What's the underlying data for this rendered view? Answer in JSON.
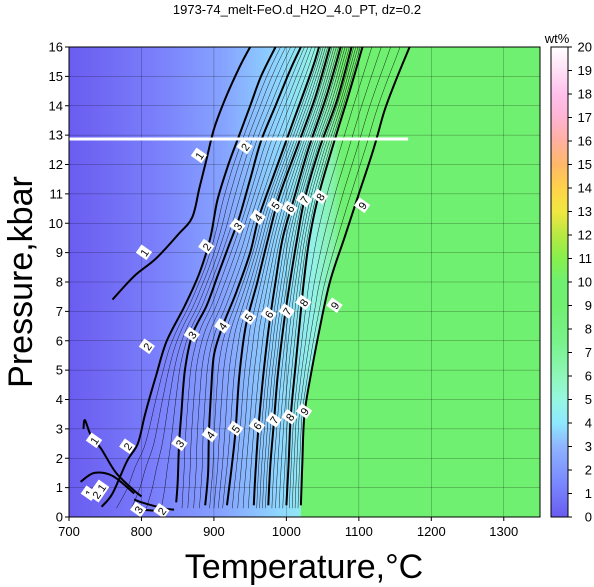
{
  "chart_data": {
    "type": "heatmap",
    "title": "1973-74_melt-FeO.d_H2O_4.0_PT, dz=0.2",
    "xlabel": "Temperature,°C",
    "ylabel": "Pressure,kbar",
    "xlim": [
      700,
      1350
    ],
    "ylim": [
      0,
      16
    ],
    "x_ticks": [
      "700",
      "800",
      "900",
      "1000",
      "1100",
      "1200",
      "1300"
    ],
    "y_ticks": [
      "0",
      "1",
      "2",
      "3",
      "4",
      "5",
      "6",
      "7",
      "8",
      "9",
      "10",
      "11",
      "12",
      "13",
      "14",
      "15",
      "16"
    ],
    "grid": true,
    "colorbar": {
      "label": "wt%",
      "range": [
        0,
        20
      ],
      "ticks": [
        "0",
        "1",
        "2",
        "3",
        "4",
        "5",
        "6",
        "7",
        "8",
        "9",
        "10",
        "11",
        "12",
        "13",
        "14",
        "15",
        "16",
        "17",
        "18",
        "19",
        "20"
      ],
      "stops": [
        {
          "v": 0,
          "color": "#6a5cf0"
        },
        {
          "v": 1.5,
          "color": "#7a8aff"
        },
        {
          "v": 3,
          "color": "#8fb4ff"
        },
        {
          "v": 4,
          "color": "#8ee8ff"
        },
        {
          "v": 5,
          "color": "#96f7e0"
        },
        {
          "v": 6,
          "color": "#8ef7b8"
        },
        {
          "v": 7.5,
          "color": "#78f28a"
        },
        {
          "v": 9,
          "color": "#70f070"
        },
        {
          "v": 10,
          "color": "#70f070"
        },
        {
          "v": 11,
          "color": "#86f04c"
        },
        {
          "v": 12,
          "color": "#b7e842"
        },
        {
          "v": 13,
          "color": "#f0e840"
        },
        {
          "v": 14,
          "color": "#ffd24a"
        },
        {
          "v": 15,
          "color": "#ffb868"
        },
        {
          "v": 16,
          "color": "#ffb0a0"
        },
        {
          "v": 17,
          "color": "#ffb4d2"
        },
        {
          "v": 18,
          "color": "#ffc0ec"
        },
        {
          "v": 19,
          "color": "#ffe0f6"
        },
        {
          "v": 20,
          "color": "#ffffff"
        }
      ]
    },
    "saturated_region": {
      "color": "#70f070",
      "value_wt_pct": 10
    },
    "contours": [
      {
        "level": 1,
        "points": [
          [
            716,
            1.2
          ],
          [
            735,
            1.5
          ],
          [
            760,
            1.4
          ],
          [
            790,
            0.8
          ]
        ]
      },
      {
        "level": 1,
        "points": [
          [
            720,
            3.0
          ],
          [
            722,
            3.3
          ],
          [
            730,
            2.8
          ],
          [
            745,
            2.3
          ],
          [
            765,
            1.5
          ],
          [
            790,
            0.9
          ],
          [
            800,
            0.7
          ]
        ]
      },
      {
        "level": 1,
        "points": [
          [
            760,
            7.4
          ],
          [
            790,
            8.2
          ],
          [
            820,
            8.8
          ],
          [
            850,
            9.6
          ],
          [
            870,
            10.2
          ],
          [
            880,
            11.2
          ],
          [
            890,
            12.2
          ],
          [
            900,
            13.2
          ],
          [
            915,
            14.2
          ],
          [
            935,
            15.3
          ],
          [
            950,
            16.0
          ]
        ]
      },
      {
        "level": 2,
        "points": [
          [
            790,
            0.6
          ],
          [
            800,
            0.5
          ],
          [
            830,
            0.3
          ],
          [
            845,
            0.25
          ]
        ]
      },
      {
        "level": 2,
        "points": [
          [
            745,
            0.35
          ],
          [
            760,
            0.8
          ],
          [
            780,
            1.9
          ],
          [
            795,
            2.5
          ],
          [
            805,
            3.5
          ],
          [
            820,
            4.8
          ],
          [
            835,
            6.0
          ],
          [
            860,
            7.2
          ],
          [
            880,
            8.3
          ],
          [
            895,
            9.5
          ],
          [
            905,
            10.8
          ],
          [
            920,
            12.0
          ],
          [
            935,
            13.0
          ],
          [
            950,
            14.0
          ],
          [
            965,
            15.0
          ],
          [
            985,
            16.0
          ]
        ]
      },
      {
        "level": 3,
        "points": [
          [
            800,
            0.25
          ],
          [
            825,
            0.2
          ]
        ]
      },
      {
        "level": 3,
        "points": [
          [
            848,
            0.5
          ],
          [
            850,
            1.2
          ],
          [
            852,
            2.5
          ],
          [
            855,
            3.5
          ],
          [
            860,
            5.0
          ],
          [
            870,
            6.2
          ],
          [
            890,
            7.2
          ],
          [
            905,
            8.2
          ],
          [
            920,
            9.2
          ],
          [
            935,
            10.2
          ],
          [
            950,
            11.5
          ],
          [
            965,
            12.8
          ],
          [
            985,
            14.0
          ],
          [
            1005,
            15.2
          ],
          [
            1020,
            16.0
          ]
        ]
      },
      {
        "level": 4,
        "points": [
          [
            888,
            0.4
          ],
          [
            892,
            1.5
          ],
          [
            893,
            2.8
          ],
          [
            896,
            4.2
          ],
          [
            900,
            5.5
          ],
          [
            912,
            6.5
          ],
          [
            930,
            7.6
          ],
          [
            950,
            9.0
          ],
          [
            962,
            10.2
          ],
          [
            985,
            11.8
          ],
          [
            1010,
            13.5
          ],
          [
            1035,
            15.2
          ],
          [
            1045,
            16.0
          ]
        ]
      },
      {
        "level": 5,
        "points": [
          [
            918,
            0.4
          ],
          [
            925,
            1.8
          ],
          [
            930,
            3.0
          ],
          [
            935,
            4.8
          ],
          [
            944,
            6.5
          ],
          [
            960,
            8.0
          ],
          [
            975,
            9.5
          ],
          [
            990,
            10.9
          ],
          [
            1015,
            12.6
          ],
          [
            1040,
            14.3
          ],
          [
            1060,
            16.0
          ]
        ]
      },
      {
        "level": 6,
        "points": [
          [
            955,
            0.4
          ],
          [
            958,
            1.8
          ],
          [
            962,
            3.2
          ],
          [
            968,
            4.8
          ],
          [
            976,
            6.5
          ],
          [
            985,
            8.0
          ],
          [
            995,
            9.5
          ],
          [
            1010,
            10.8
          ],
          [
            1030,
            12.5
          ],
          [
            1055,
            14.3
          ],
          [
            1075,
            16.0
          ]
        ]
      },
      {
        "level": 7,
        "points": [
          [
            975,
            0.4
          ],
          [
            978,
            1.8
          ],
          [
            983,
            3.3
          ],
          [
            988,
            4.8
          ],
          [
            996,
            6.5
          ],
          [
            1005,
            8.0
          ],
          [
            1015,
            9.5
          ],
          [
            1025,
            10.8
          ],
          [
            1045,
            12.5
          ],
          [
            1070,
            14.2
          ],
          [
            1090,
            16.0
          ]
        ]
      },
      {
        "level": 8,
        "points": [
          [
            1000,
            0.4
          ],
          [
            1003,
            1.8
          ],
          [
            1006,
            3.4
          ],
          [
            1012,
            5.0
          ],
          [
            1018,
            6.5
          ],
          [
            1024,
            8.0
          ],
          [
            1032,
            9.5
          ],
          [
            1045,
            11.0
          ],
          [
            1065,
            12.7
          ],
          [
            1085,
            14.3
          ],
          [
            1105,
            16.0
          ]
        ]
      },
      {
        "level": 9,
        "points": [
          [
            1020,
            0.4
          ],
          [
            1022,
            1.8
          ],
          [
            1025,
            3.5
          ],
          [
            1035,
            5.0
          ],
          [
            1045,
            6.3
          ],
          [
            1060,
            8.0
          ],
          [
            1080,
            9.5
          ],
          [
            1100,
            11.0
          ],
          [
            1120,
            12.5
          ],
          [
            1135,
            13.8
          ],
          [
            1150,
            14.8
          ],
          [
            1170,
            16.0
          ]
        ]
      }
    ],
    "contour_labels": [
      {
        "text": "1",
        "t": 735,
        "p": 2.6
      },
      {
        "text": "1",
        "t": 745,
        "p": 1.0
      },
      {
        "text": "1",
        "t": 728,
        "p": 0.8
      },
      {
        "text": "1",
        "t": 804,
        "p": 9.0
      },
      {
        "text": "1",
        "t": 880,
        "p": 12.3
      },
      {
        "text": "2",
        "t": 738,
        "p": 0.75
      },
      {
        "text": "2",
        "t": 781,
        "p": 2.4
      },
      {
        "text": "2",
        "t": 808,
        "p": 5.8
      },
      {
        "text": "2",
        "t": 890,
        "p": 9.2
      },
      {
        "text": "2",
        "t": 943,
        "p": 12.6
      },
      {
        "text": "2",
        "t": 828,
        "p": 0.2
      },
      {
        "text": "3",
        "t": 796,
        "p": 0.25
      },
      {
        "text": "3",
        "t": 853,
        "p": 2.5
      },
      {
        "text": "3",
        "t": 870,
        "p": 6.2
      },
      {
        "text": "3",
        "t": 933,
        "p": 9.9
      },
      {
        "text": "4",
        "t": 895,
        "p": 2.8
      },
      {
        "text": "4",
        "t": 912,
        "p": 6.5
      },
      {
        "text": "4",
        "t": 961,
        "p": 10.2
      },
      {
        "text": "5",
        "t": 930,
        "p": 3.0
      },
      {
        "text": "5",
        "t": 948,
        "p": 6.8
      },
      {
        "text": "5",
        "t": 985,
        "p": 10.6
      },
      {
        "text": "6",
        "t": 960,
        "p": 3.1
      },
      {
        "text": "6",
        "t": 976,
        "p": 6.9
      },
      {
        "text": "6",
        "t": 1005,
        "p": 10.5
      },
      {
        "text": "7",
        "t": 983,
        "p": 3.3
      },
      {
        "text": "7",
        "t": 1001,
        "p": 7.0
      },
      {
        "text": "7",
        "t": 1025,
        "p": 10.8
      },
      {
        "text": "8",
        "t": 1005,
        "p": 3.4
      },
      {
        "text": "8",
        "t": 1024,
        "p": 7.3
      },
      {
        "text": "8",
        "t": 1047,
        "p": 10.9
      },
      {
        "text": "9",
        "t": 1025,
        "p": 3.6
      },
      {
        "text": "9",
        "t": 1067,
        "p": 7.2
      },
      {
        "text": "9",
        "t": 1105,
        "p": 10.6
      }
    ],
    "highlight_line": {
      "p": 12.87,
      "t_start": 700,
      "t_end": 1168,
      "color": "#ffffff"
    }
  }
}
